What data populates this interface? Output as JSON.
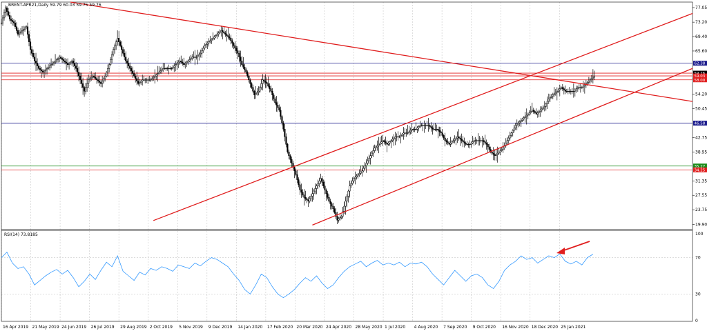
{
  "chart_data": {
    "type": "candlestick",
    "title": "BRENT-APR21,Daily  59.79 60.03 59.75 59.76",
    "indicator_title": "RSI(14) 73.8185",
    "x_tick_labels": [
      "16 Apr 2019",
      "21 May 2019",
      "24 Jun 2019",
      "26 Jul 2019",
      "29 Aug 2019",
      "2 Oct 2019",
      "5 Nov 2019",
      "9 Dec 2019",
      "14 Jan 2020",
      "17 Feb 2020",
      "20 Mar 2020",
      "24 Apr 2020",
      "28 May 2020",
      "1 Jul 2020",
      "4 Aug 2020",
      "7 Sep 2020",
      "9 Oct 2020",
      "16 Nov 2020",
      "18 Dec 2020",
      "25 Jan 2021"
    ],
    "y_tick_labels": [
      "77.05",
      "73.20",
      "69.40",
      "65.60",
      "58.20",
      "54.20",
      "50.45",
      "42.75",
      "38.95",
      "31.35",
      "27.55",
      "23.75",
      "19.90"
    ],
    "ylim": [
      18.5,
      78.5
    ],
    "rsi_ylim": [
      0,
      100
    ],
    "rsi_levels": [
      70,
      30
    ],
    "rsi_tick_labels": [
      "100",
      "70",
      "30",
      "0"
    ],
    "price_series": [
      [
        0,
        73
      ],
      [
        3,
        77
      ],
      [
        6,
        74
      ],
      [
        9,
        73
      ],
      [
        12,
        70
      ],
      [
        15,
        71
      ],
      [
        18,
        72
      ],
      [
        21,
        66
      ],
      [
        24,
        63
      ],
      [
        27,
        61
      ],
      [
        30,
        60
      ],
      [
        33,
        61
      ],
      [
        36,
        62
      ],
      [
        39,
        63
      ],
      [
        42,
        64
      ],
      [
        45,
        63
      ],
      [
        48,
        62
      ],
      [
        51,
        63
      ],
      [
        54,
        61
      ],
      [
        57,
        58
      ],
      [
        60,
        55
      ],
      [
        63,
        58
      ],
      [
        66,
        59
      ],
      [
        69,
        58
      ],
      [
        72,
        57
      ],
      [
        75,
        59
      ],
      [
        78,
        62
      ],
      [
        81,
        66
      ],
      [
        84,
        69
      ],
      [
        87,
        66
      ],
      [
        90,
        63
      ],
      [
        93,
        61
      ],
      [
        96,
        59
      ],
      [
        99,
        57
      ],
      [
        102,
        58
      ],
      [
        105,
        58
      ],
      [
        108,
        58
      ],
      [
        111,
        59
      ],
      [
        114,
        60
      ],
      [
        117,
        61
      ],
      [
        120,
        61
      ],
      [
        123,
        61
      ],
      [
        126,
        62
      ],
      [
        129,
        63
      ],
      [
        132,
        62
      ],
      [
        135,
        63
      ],
      [
        138,
        64
      ],
      [
        141,
        64
      ],
      [
        144,
        65
      ],
      [
        147,
        67
      ],
      [
        150,
        68
      ],
      [
        153,
        69
      ],
      [
        156,
        70
      ],
      [
        159,
        71
      ],
      [
        162,
        70
      ],
      [
        165,
        69
      ],
      [
        168,
        67
      ],
      [
        171,
        65
      ],
      [
        174,
        62
      ],
      [
        177,
        60
      ],
      [
        180,
        57
      ],
      [
        183,
        54
      ],
      [
        186,
        55
      ],
      [
        189,
        58
      ],
      [
        192,
        57
      ],
      [
        195,
        55
      ],
      [
        198,
        52
      ],
      [
        201,
        50
      ],
      [
        204,
        45
      ],
      [
        207,
        39
      ],
      [
        210,
        36
      ],
      [
        213,
        33
      ],
      [
        216,
        29
      ],
      [
        219,
        27
      ],
      [
        222,
        26
      ],
      [
        225,
        28
      ],
      [
        228,
        30
      ],
      [
        231,
        32
      ],
      [
        234,
        29
      ],
      [
        237,
        26
      ],
      [
        240,
        24
      ],
      [
        243,
        21
      ],
      [
        246,
        22
      ],
      [
        249,
        26
      ],
      [
        252,
        30
      ],
      [
        255,
        32
      ],
      [
        258,
        33
      ],
      [
        261,
        34
      ],
      [
        264,
        36
      ],
      [
        267,
        38
      ],
      [
        270,
        40
      ],
      [
        273,
        41
      ],
      [
        276,
        42
      ],
      [
        279,
        41
      ],
      [
        282,
        42
      ],
      [
        285,
        43
      ],
      [
        288,
        43
      ],
      [
        291,
        44
      ],
      [
        294,
        44
      ],
      [
        297,
        45
      ],
      [
        300,
        45
      ],
      [
        303,
        46
      ],
      [
        306,
        46
      ],
      [
        309,
        46
      ],
      [
        312,
        45
      ],
      [
        315,
        45
      ],
      [
        318,
        44
      ],
      [
        321,
        42
      ],
      [
        324,
        41
      ],
      [
        327,
        42
      ],
      [
        330,
        43
      ],
      [
        333,
        42
      ],
      [
        336,
        41
      ],
      [
        339,
        41
      ],
      [
        342,
        42
      ],
      [
        345,
        42
      ],
      [
        348,
        42
      ],
      [
        351,
        41
      ],
      [
        354,
        39
      ],
      [
        357,
        38
      ],
      [
        360,
        39
      ],
      [
        363,
        40
      ],
      [
        366,
        42
      ],
      [
        369,
        44
      ],
      [
        372,
        46
      ],
      [
        375,
        47
      ],
      [
        378,
        48
      ],
      [
        381,
        49
      ],
      [
        384,
        50
      ],
      [
        387,
        49
      ],
      [
        390,
        50
      ],
      [
        393,
        51
      ],
      [
        396,
        53
      ],
      [
        399,
        54
      ],
      [
        402,
        55
      ],
      [
        405,
        56
      ],
      [
        408,
        55
      ],
      [
        411,
        55
      ],
      [
        414,
        55
      ],
      [
        417,
        56
      ],
      [
        420,
        56
      ],
      [
        423,
        57
      ],
      [
        426,
        58
      ],
      [
        429,
        59
      ]
    ],
    "rsi_series": [
      [
        0,
        70
      ],
      [
        4,
        76
      ],
      [
        8,
        64
      ],
      [
        12,
        58
      ],
      [
        16,
        60
      ],
      [
        20,
        52
      ],
      [
        24,
        40
      ],
      [
        28,
        45
      ],
      [
        32,
        50
      ],
      [
        36,
        54
      ],
      [
        40,
        57
      ],
      [
        44,
        52
      ],
      [
        48,
        56
      ],
      [
        52,
        48
      ],
      [
        56,
        38
      ],
      [
        60,
        44
      ],
      [
        64,
        52
      ],
      [
        68,
        46
      ],
      [
        72,
        56
      ],
      [
        76,
        65
      ],
      [
        80,
        60
      ],
      [
        84,
        72
      ],
      [
        88,
        55
      ],
      [
        92,
        50
      ],
      [
        96,
        45
      ],
      [
        100,
        54
      ],
      [
        104,
        51
      ],
      [
        108,
        58
      ],
      [
        112,
        56
      ],
      [
        116,
        60
      ],
      [
        120,
        58
      ],
      [
        124,
        55
      ],
      [
        128,
        62
      ],
      [
        132,
        60
      ],
      [
        136,
        58
      ],
      [
        140,
        64
      ],
      [
        144,
        61
      ],
      [
        148,
        66
      ],
      [
        152,
        70
      ],
      [
        156,
        68
      ],
      [
        160,
        64
      ],
      [
        164,
        60
      ],
      [
        168,
        52
      ],
      [
        172,
        45
      ],
      [
        176,
        35
      ],
      [
        180,
        30
      ],
      [
        184,
        40
      ],
      [
        188,
        52
      ],
      [
        192,
        48
      ],
      [
        196,
        38
      ],
      [
        200,
        30
      ],
      [
        204,
        26
      ],
      [
        208,
        30
      ],
      [
        212,
        35
      ],
      [
        216,
        42
      ],
      [
        220,
        48
      ],
      [
        224,
        44
      ],
      [
        228,
        50
      ],
      [
        232,
        42
      ],
      [
        236,
        36
      ],
      [
        240,
        40
      ],
      [
        244,
        48
      ],
      [
        248,
        55
      ],
      [
        252,
        60
      ],
      [
        256,
        63
      ],
      [
        260,
        66
      ],
      [
        264,
        60
      ],
      [
        268,
        64
      ],
      [
        272,
        67
      ],
      [
        276,
        62
      ],
      [
        280,
        64
      ],
      [
        284,
        62
      ],
      [
        288,
        65
      ],
      [
        292,
        60
      ],
      [
        296,
        64
      ],
      [
        300,
        63
      ],
      [
        304,
        65
      ],
      [
        308,
        60
      ],
      [
        312,
        52
      ],
      [
        316,
        46
      ],
      [
        320,
        40
      ],
      [
        324,
        48
      ],
      [
        328,
        56
      ],
      [
        332,
        50
      ],
      [
        336,
        44
      ],
      [
        340,
        50
      ],
      [
        344,
        52
      ],
      [
        348,
        48
      ],
      [
        352,
        40
      ],
      [
        356,
        36
      ],
      [
        360,
        44
      ],
      [
        364,
        56
      ],
      [
        368,
        62
      ],
      [
        372,
        66
      ],
      [
        376,
        72
      ],
      [
        380,
        68
      ],
      [
        384,
        70
      ],
      [
        388,
        64
      ],
      [
        392,
        68
      ],
      [
        396,
        72
      ],
      [
        400,
        70
      ],
      [
        404,
        74
      ],
      [
        408,
        66
      ],
      [
        412,
        63
      ],
      [
        416,
        66
      ],
      [
        420,
        62
      ],
      [
        424,
        70
      ],
      [
        428,
        73.8
      ]
    ],
    "horizontal_lines": [
      {
        "price": 62.38,
        "color": "#1a1a8c"
      },
      {
        "price": 59.76,
        "color": "#e01e1e"
      },
      {
        "price": 59.03,
        "color": "#e01e1e"
      },
      {
        "price": 58.0,
        "color": "#e01e1e"
      },
      {
        "price": 46.58,
        "color": "#1a1a8c"
      },
      {
        "price": 35.27,
        "color": "#1a8c1a"
      },
      {
        "price": 34.25,
        "color": "#e01e1e"
      }
    ],
    "trendlines": [
      {
        "x1": 50,
        "y1": 78.5,
        "x2": 500,
        "y2": 52.3
      },
      {
        "x1": 110,
        "y1": 20.9,
        "x2": 500,
        "y2": 75.5
      },
      {
        "x1": 225,
        "y1": 19.7,
        "x2": 500,
        "y2": 61.0
      }
    ],
    "price_tags": [
      {
        "label": "62.38",
        "price": 62.38,
        "color": "#1a1a8c"
      },
      {
        "label": "59.76",
        "price": 59.76,
        "color": "#000000"
      },
      {
        "label": "59.03",
        "price": 59.03,
        "color": "#e01e1e"
      },
      {
        "label": "58.00",
        "price": 58.0,
        "color": "#e01e1e"
      },
      {
        "label": "46.58",
        "price": 46.58,
        "color": "#1a1a8c"
      },
      {
        "label": "35.27",
        "price": 35.27,
        "color": "#1a8c1a"
      },
      {
        "label": "34.25",
        "price": 34.25,
        "color": "#e01e1e"
      }
    ]
  },
  "colors": {
    "candle": "#000000",
    "grid": "#c8c8c8",
    "rsi_line": "#3399ff",
    "arrow": "#e01e1e"
  }
}
